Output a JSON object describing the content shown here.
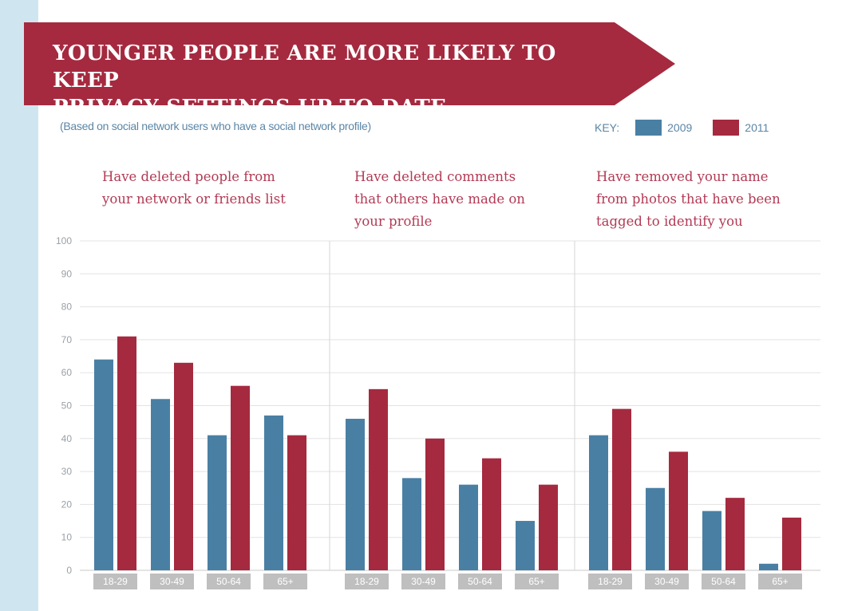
{
  "header": {
    "title_line1": "YOUNGER PEOPLE ARE MORE LIKELY TO KEEP",
    "title_line2": "PRIVACY SETTINGS UP TO DATE"
  },
  "subtitle": "(Based on social network users who have a social network profile)",
  "legend": {
    "key_label": "KEY:",
    "items": [
      {
        "label": "2009",
        "color": "#4a7fa4"
      },
      {
        "label": "2011",
        "color": "#a52a3f"
      }
    ]
  },
  "colors": {
    "banner": "#a52a3f",
    "series_2009": "#4a7fa4",
    "series_2011": "#a52a3f",
    "category_box": "#bfbfbf"
  },
  "chart_data": {
    "type": "bar",
    "ylim": [
      0,
      100
    ],
    "yticks": [
      "0",
      "10",
      "20",
      "30",
      "40",
      "50",
      "60",
      "70",
      "80",
      "90",
      "100"
    ],
    "grid": true,
    "legend_position": "top-right",
    "panels": [
      {
        "title": "Have deleted people from your network or friends list",
        "title_lines": [
          "Have deleted people from",
          "your network or friends list"
        ],
        "categories": [
          "18-29",
          "30-49",
          "50-64",
          "65+"
        ],
        "series": [
          {
            "name": "2009",
            "values": [
              64,
              52,
              41,
              47
            ]
          },
          {
            "name": "2011",
            "values": [
              71,
              63,
              56,
              41
            ]
          }
        ]
      },
      {
        "title": "Have deleted comments that others have made on your profile",
        "title_lines": [
          "Have deleted comments",
          "that others have made on",
          "your profile"
        ],
        "categories": [
          "18-29",
          "30-49",
          "50-64",
          "65+"
        ],
        "series": [
          {
            "name": "2009",
            "values": [
              46,
              28,
              26,
              15
            ]
          },
          {
            "name": "2011",
            "values": [
              55,
              40,
              34,
              26
            ]
          }
        ]
      },
      {
        "title": "Have removed your name from photos that have been tagged to identify you",
        "title_lines": [
          "Have removed your name",
          "from photos that have been",
          "tagged to identify you"
        ],
        "categories": [
          "18-29",
          "30-49",
          "50-64",
          "65+"
        ],
        "series": [
          {
            "name": "2009",
            "values": [
              41,
              25,
              18,
              2
            ]
          },
          {
            "name": "2011",
            "values": [
              49,
              36,
              22,
              16
            ]
          }
        ]
      }
    ]
  }
}
